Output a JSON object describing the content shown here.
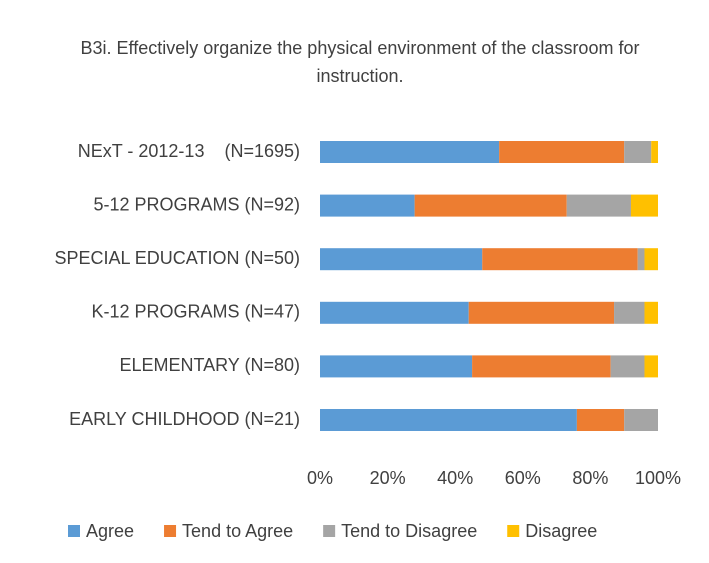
{
  "chart_data": {
    "type": "stacked_barh",
    "title": "B3i. Effectively organize the physical environment of the classroom for instruction.",
    "categories": [
      "NExT - 2012-13    (N=1695)",
      "5-12 PROGRAMS (N=92)",
      "SPECIAL EDUCATION (N=50)",
      "K-12 PROGRAMS (N=47)",
      "ELEMENTARY (N=80)",
      "EARLY CHILDHOOD (N=21)"
    ],
    "series": [
      {
        "name": "Agree",
        "color": "#5b9bd5",
        "values": [
          53,
          28,
          48,
          44,
          45,
          76
        ]
      },
      {
        "name": "Tend to Agree",
        "color": "#ed7d31",
        "values": [
          37,
          45,
          46,
          43,
          41,
          14
        ]
      },
      {
        "name": "Tend to Disagree",
        "color": "#a5a5a5",
        "values": [
          8,
          19,
          2,
          9,
          10,
          10
        ]
      },
      {
        "name": "Disagree",
        "color": "#ffc000",
        "values": [
          2,
          8,
          4,
          4,
          4,
          0
        ]
      }
    ],
    "xlim": [
      0,
      100
    ],
    "xticks": [
      {
        "value": 0,
        "label": "0%"
      },
      {
        "value": 20,
        "label": "20%"
      },
      {
        "value": 40,
        "label": "40%"
      },
      {
        "value": 60,
        "label": "60%"
      },
      {
        "value": 80,
        "label": "80%"
      },
      {
        "value": 100,
        "label": "100%"
      }
    ],
    "legend": "bottom"
  }
}
